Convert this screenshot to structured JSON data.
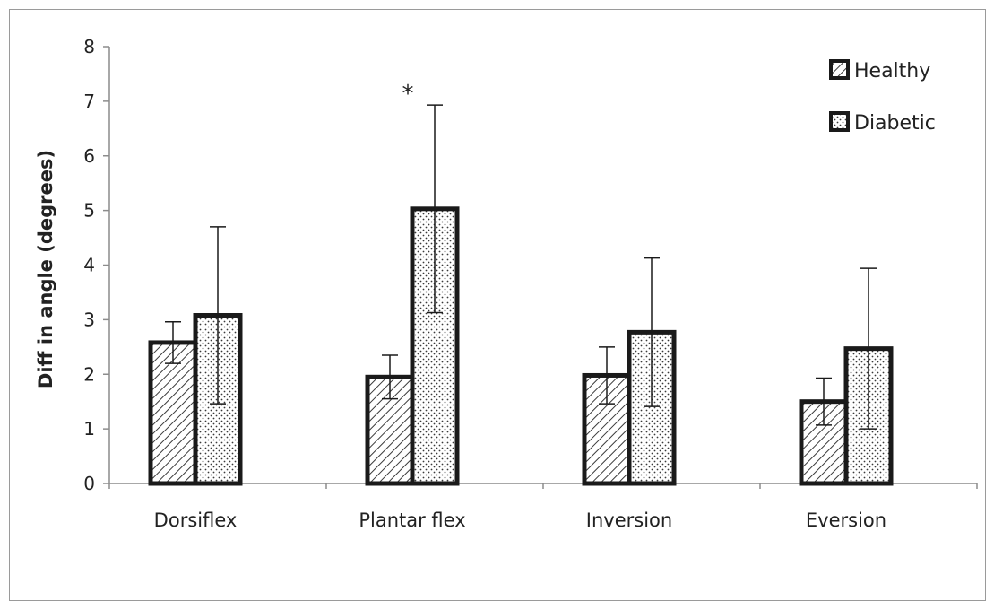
{
  "chart_data": {
    "type": "bar",
    "title": "",
    "xlabel": "",
    "ylabel": "Diff in angle (degrees)",
    "ylim": [
      0,
      8
    ],
    "yticks": [
      0,
      1,
      2,
      3,
      4,
      5,
      6,
      7,
      8
    ],
    "categories": [
      "Dorsiflex",
      "Plantar flex",
      "Inversion",
      "Eversion"
    ],
    "series": [
      {
        "name": "Healthy",
        "pattern": "diagonal-hatch",
        "values": [
          2.58,
          1.95,
          1.98,
          1.5
        ],
        "error_upper": [
          0.38,
          0.4,
          0.52,
          0.43
        ],
        "error_lower": [
          0.38,
          0.4,
          0.52,
          0.43
        ]
      },
      {
        "name": "Diabetic",
        "pattern": "dots",
        "values": [
          3.08,
          5.03,
          2.77,
          2.47
        ],
        "error_upper": [
          1.62,
          1.9,
          1.36,
          1.47
        ],
        "error_lower": [
          1.62,
          1.9,
          1.36,
          1.47
        ]
      }
    ],
    "annotations": [
      {
        "text": "*",
        "category": "Plantar flex"
      }
    ],
    "legend_position": "top-right",
    "grid": false,
    "colors": {
      "bar_stroke": "#1a1a1a",
      "axis": "#8c8c8c",
      "text": "#222222"
    }
  }
}
